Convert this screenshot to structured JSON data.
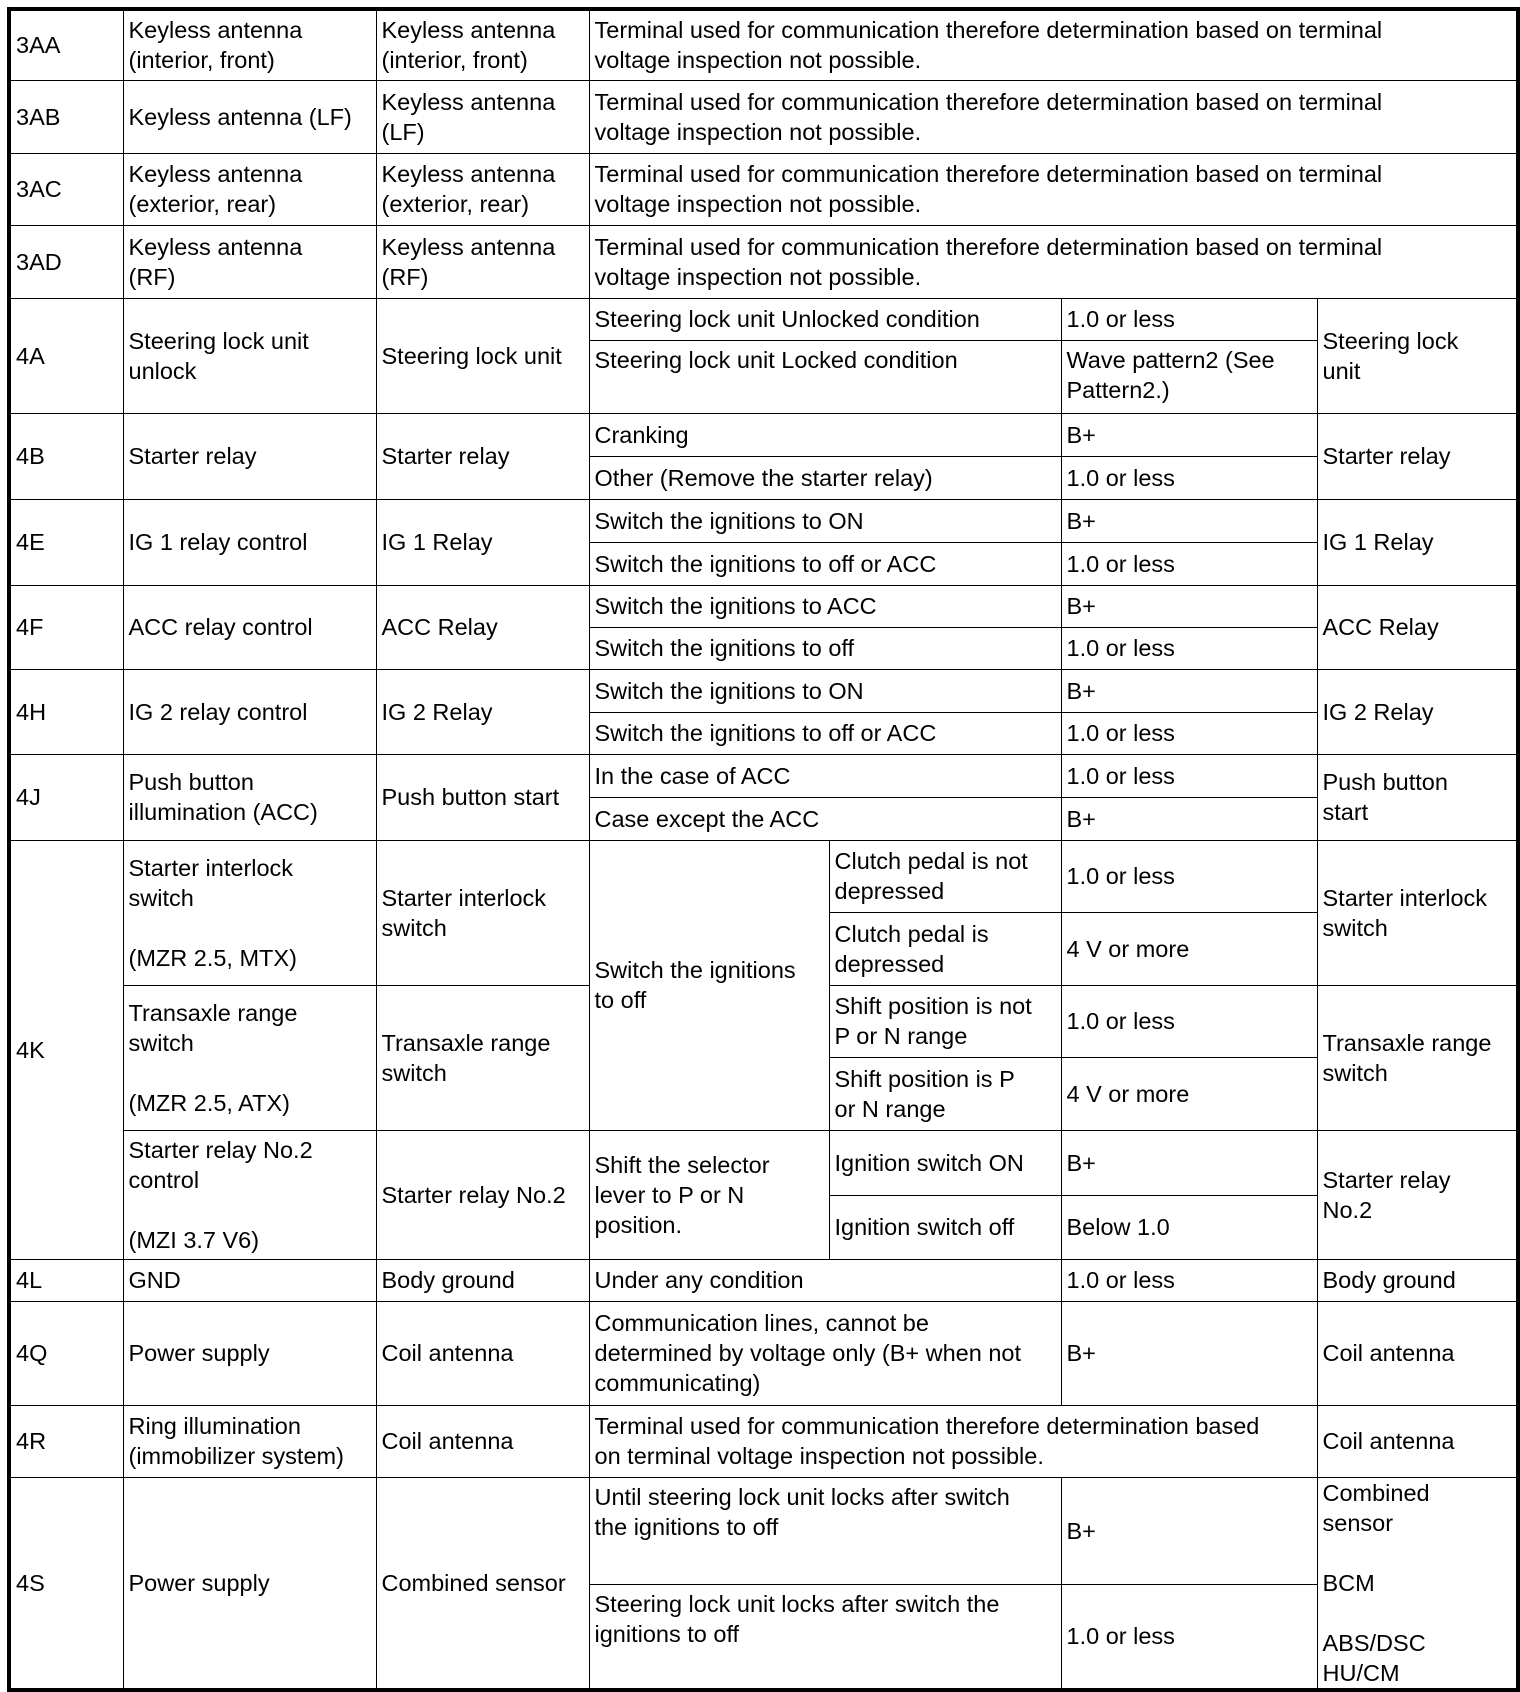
{
  "rows": [
    {
      "terminal": "3AA",
      "signal": "Keyless antenna\n(interior, front)",
      "connected_to": "Keyless antenna\n(interior, front)",
      "note": "Terminal used for communication therefore determination based on terminal\nvoltage inspection not possible."
    },
    {
      "terminal": "3AB",
      "signal": "Keyless antenna (LF)",
      "connected_to": "Keyless antenna\n(LF)",
      "note": "Terminal used for communication therefore determination based on terminal\nvoltage inspection not possible."
    },
    {
      "terminal": "3AC",
      "signal": "Keyless antenna\n(exterior, rear)",
      "connected_to": "Keyless antenna\n(exterior, rear)",
      "note": "Terminal used for communication therefore determination based on terminal\nvoltage inspection not possible."
    },
    {
      "terminal": "3AD",
      "signal": "Keyless antenna\n(RF)",
      "connected_to": "Keyless antenna\n(RF)",
      "note": "Terminal used for communication therefore determination based on terminal\nvoltage inspection not possible."
    },
    {
      "terminal": "4A",
      "signal": "Steering lock unit\nunlock",
      "connected_to": "Steering lock unit",
      "inspection": "Steering lock\nunit",
      "conditions": [
        {
          "condition": "Steering lock unit Unlocked condition",
          "voltage": "1.0 or less"
        },
        {
          "condition": "Steering lock unit Locked condition",
          "voltage": "Wave pattern2 (See\nPattern2.)"
        }
      ]
    },
    {
      "terminal": "4B",
      "signal": "Starter relay",
      "connected_to": "Starter relay",
      "inspection": "Starter relay",
      "conditions": [
        {
          "condition": "Cranking",
          "voltage": "B+"
        },
        {
          "condition": "Other (Remove the starter relay)",
          "voltage": "1.0 or less"
        }
      ]
    },
    {
      "terminal": "4E",
      "signal": "IG 1 relay control",
      "connected_to": "IG 1 Relay",
      "inspection": "IG 1 Relay",
      "conditions": [
        {
          "condition": "Switch the ignitions to ON",
          "voltage": "B+"
        },
        {
          "condition": "Switch the ignitions to off or ACC",
          "voltage": "1.0 or less"
        }
      ]
    },
    {
      "terminal": "4F",
      "signal": "ACC relay control",
      "connected_to": "ACC Relay",
      "inspection": "ACC Relay",
      "conditions": [
        {
          "condition": "Switch the ignitions to ACC",
          "voltage": "B+"
        },
        {
          "condition": "Switch the ignitions to off",
          "voltage": "1.0 or less"
        }
      ]
    },
    {
      "terminal": "4H",
      "signal": "IG 2 relay control",
      "connected_to": "IG 2 Relay",
      "inspection": "IG 2 Relay",
      "conditions": [
        {
          "condition": "Switch the ignitions to ON",
          "voltage": "B+"
        },
        {
          "condition": "Switch the ignitions to off or ACC",
          "voltage": "1.0 or less"
        }
      ]
    },
    {
      "terminal": "4J",
      "signal": "Push button\nillumination (ACC)",
      "connected_to": "Push button start",
      "inspection": "Push button\nstart",
      "conditions": [
        {
          "condition": "In the case of ACC",
          "voltage": "1.0 or less"
        },
        {
          "condition": "Case except the ACC",
          "voltage": "B+"
        }
      ]
    },
    {
      "terminal": "4K",
      "items": [
        {
          "signal": "Starter interlock\nswitch\n\n(MZR 2.5, MTX)",
          "connected_to": "Starter interlock\nswitch",
          "inspection": "Starter interlock\nswitch"
        },
        {
          "signal": "Transaxle range\nswitch\n\n(MZR 2.5, ATX)",
          "connected_to": "Transaxle range\nswitch",
          "inspection": "Transaxle range\nswitch"
        },
        {
          "signal": "Starter relay No.2\ncontrol\n\n(MZI 3.7 V6)",
          "connected_to": "Starter relay No.2",
          "inspection": "Starter relay\nNo.2"
        }
      ],
      "groups": [
        {
          "condition": "Switch the ignitions\nto off",
          "cases": [
            {
              "case": "Clutch pedal is not\ndepressed",
              "voltage": "1.0 or less"
            },
            {
              "case": "Clutch pedal is\ndepressed",
              "voltage": "4 V or more"
            },
            {
              "case": "Shift position is not\nP or N range",
              "voltage": "1.0 or less"
            },
            {
              "case": "Shift position is P\nor N range",
              "voltage": "4 V or more"
            }
          ]
        },
        {
          "condition": "Shift the selector\nlever to P or N\nposition.",
          "cases": [
            {
              "case": "Ignition switch ON",
              "voltage": "B+"
            },
            {
              "case": "Ignition switch off",
              "voltage": "Below 1.0"
            }
          ]
        }
      ]
    },
    {
      "terminal": "4L",
      "signal": "GND",
      "connected_to": "Body ground",
      "condition": "Under any condition",
      "voltage": "1.0 or less",
      "inspection": "Body ground"
    },
    {
      "terminal": "4Q",
      "signal": "Power supply",
      "connected_to": "Coil antenna",
      "condition": "Communication lines, cannot be\ndetermined by voltage only (B+ when not\ncommunicating)",
      "voltage": "B+",
      "inspection": "Coil antenna"
    },
    {
      "terminal": "4R",
      "signal": "Ring illumination\n(immobilizer system)",
      "connected_to": "Coil antenna",
      "note": "Terminal used for communication therefore determination based\non terminal voltage inspection not possible.",
      "inspection": "Coil antenna"
    },
    {
      "terminal": "4S",
      "signal": "Power supply",
      "connected_to": "Combined sensor",
      "inspection": "Combined\nsensor\n\nBCM\n\nABS/DSC\nHU/CM",
      "conditions": [
        {
          "condition": "Until steering lock unit locks after switch\nthe ignitions to off",
          "voltage": "B+"
        },
        {
          "condition": "Steering lock unit locks after switch the\nignitions to off",
          "voltage": "1.0 or less"
        }
      ]
    }
  ]
}
